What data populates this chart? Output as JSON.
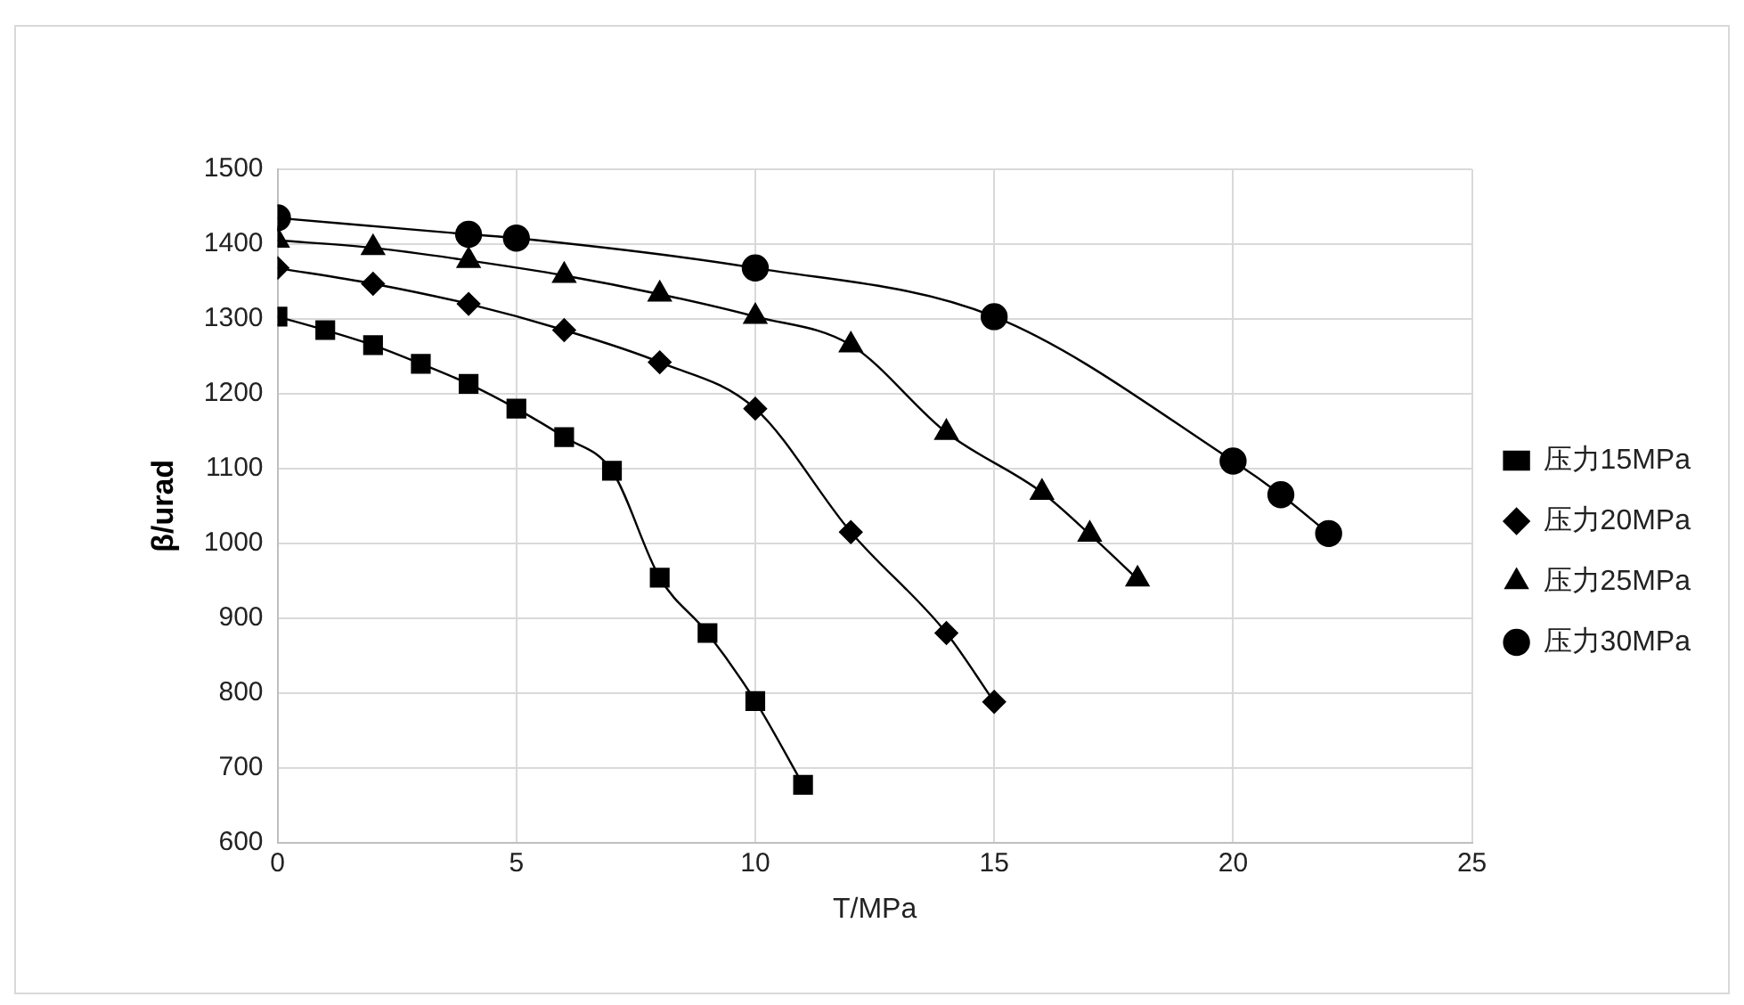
{
  "chart_data": {
    "type": "line",
    "xlabel": "T/MPa",
    "ylabel": "β/urad",
    "xlim": [
      0,
      25
    ],
    "xticks": [
      0,
      5,
      10,
      15,
      20,
      25
    ],
    "ylim": [
      600,
      1500
    ],
    "yticks": [
      600,
      700,
      800,
      900,
      1000,
      1100,
      1200,
      1300,
      1400,
      1500
    ],
    "grid": true,
    "legend": "right",
    "line_style": "solid",
    "series": [
      {
        "name": "压力15MPa",
        "color": "#000000",
        "marker": "square",
        "x": [
          0,
          1,
          2,
          3,
          4,
          5,
          6,
          7,
          8,
          9,
          10,
          11
        ],
        "values": [
          1303,
          1285,
          1265,
          1240,
          1213,
          1180,
          1142,
          1097,
          954,
          880,
          789,
          677
        ]
      },
      {
        "name": "压力20MPa",
        "color": "#000000",
        "marker": "diamond",
        "x": [
          0,
          2,
          4,
          6,
          8,
          10,
          12,
          14,
          15
        ],
        "values": [
          1368,
          1347,
          1320,
          1285,
          1242,
          1180,
          1015,
          880,
          788
        ]
      },
      {
        "name": "压力25MPa",
        "color": "#000000",
        "marker": "triangle",
        "x": [
          0,
          2,
          4,
          6,
          8,
          10,
          12,
          14,
          16,
          17,
          18
        ],
        "values": [
          1405,
          1395,
          1378,
          1358,
          1333,
          1303,
          1265,
          1148,
          1068,
          1012,
          952
        ]
      },
      {
        "name": "压力30MPa",
        "color": "#000000",
        "marker": "circle",
        "x": [
          0,
          4,
          5,
          10,
          15,
          20,
          21,
          22
        ],
        "values": [
          1435,
          1413,
          1408,
          1368,
          1303,
          1110,
          1065,
          1013
        ]
      }
    ]
  }
}
